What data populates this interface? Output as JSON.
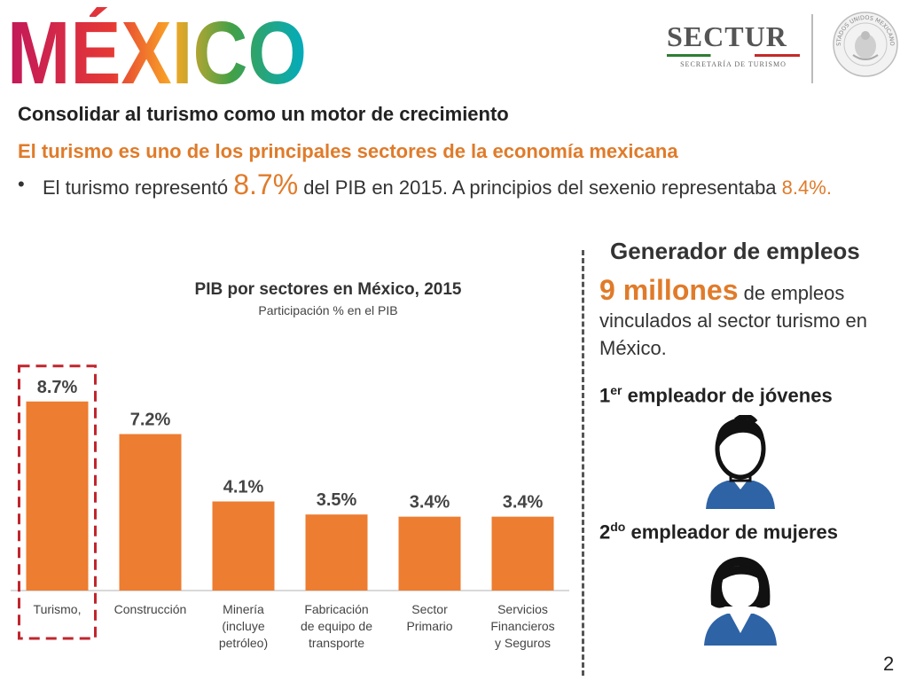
{
  "header": {
    "logo_text": "MÉXICO",
    "sectur_name": "SECTUR",
    "sectur_subtitle": "SECRETARÍA DE TURISMO",
    "seal_text": "ESTADOS UNIDOS MEXICANOS"
  },
  "headline": "Consolidar al turismo como un motor de crecimiento",
  "subheadline": "El turismo es uno de los principales sectores de la economía mexicana",
  "bullet": {
    "symbol": "•",
    "part1": "El turismo representó",
    "highlight": "8.7%",
    "part2": "del PIB en 2015. A principios del sexenio representaba",
    "prev_value": "8.4%."
  },
  "chart_data": {
    "type": "bar",
    "title": "PIB por sectores en México, 2015",
    "subtitle": "Participación % en el PIB",
    "categories": [
      [
        "Turismo,"
      ],
      [
        "Construcción"
      ],
      [
        "Minería",
        "(incluye",
        "petróleo)"
      ],
      [
        "Fabricación",
        "de equipo de",
        "transporte"
      ],
      [
        "Sector",
        "Primario"
      ],
      [
        "Servicios",
        "Financieros",
        "y Seguros"
      ]
    ],
    "values": [
      8.7,
      7.2,
      4.1,
      3.5,
      3.4,
      3.4
    ],
    "value_labels": [
      "8.7%",
      "7.2%",
      "4.1%",
      "3.5%",
      "3.4%",
      "3.4%"
    ],
    "highlight_index": 0,
    "ylim": [
      0,
      10.2
    ],
    "grid": false,
    "colors": {
      "bar": "#ed7d31",
      "highlight_border": "#c0262d",
      "axis": "#d9d9d9"
    }
  },
  "employment": {
    "title": "Generador de empleos",
    "big_number": "9 millones",
    "text": "de empleos vinculados al sector turismo en México.",
    "youth_label_pre": "1",
    "youth_label_sup": "er",
    "youth_label_post": " empleador de jóvenes",
    "women_label_pre": "2",
    "women_label_sup": "do",
    "women_label_post": " empleador de mujeres"
  },
  "page_number": "2",
  "colors": {
    "accent": "#e07b2a",
    "icon_blue": "#2e63a6"
  }
}
